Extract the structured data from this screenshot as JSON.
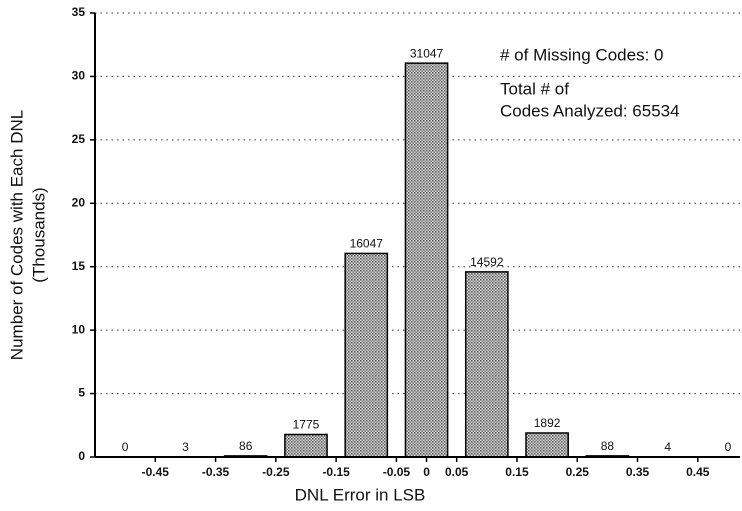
{
  "chart_data": {
    "type": "bar",
    "xlabel": "DNL Error in LSB",
    "ylabel": [
      "Number of Codes with Each DNL",
      "(Thousands)"
    ],
    "annotations": [
      "# of Missing Codes: 0",
      "Total # of",
      "Codes Analyzed: 65534"
    ],
    "x": [
      -0.5,
      -0.4,
      -0.3,
      -0.2,
      -0.1,
      0,
      0.1,
      0.2,
      0.3,
      0.4,
      0.5
    ],
    "values": [
      0,
      0.003,
      0.086,
      1.775,
      16.047,
      31.047,
      14.592,
      1.892,
      0.088,
      0.004,
      0
    ],
    "value_labels": [
      "0",
      "3",
      "86",
      "1775",
      "16047",
      "31047",
      "14592",
      "1892",
      "88",
      "4",
      "0"
    ],
    "color": "#a8a8a8",
    "xlim": [
      -0.55,
      0.52
    ],
    "xticks": [
      -0.45,
      -0.35,
      -0.25,
      -0.15,
      -0.05,
      0,
      0.05,
      0.15,
      0.25,
      0.35,
      0.45
    ],
    "ylim": [
      0,
      35
    ],
    "yticks": [
      0,
      5,
      10,
      15,
      20,
      25,
      30,
      35
    ],
    "grid": true
  }
}
